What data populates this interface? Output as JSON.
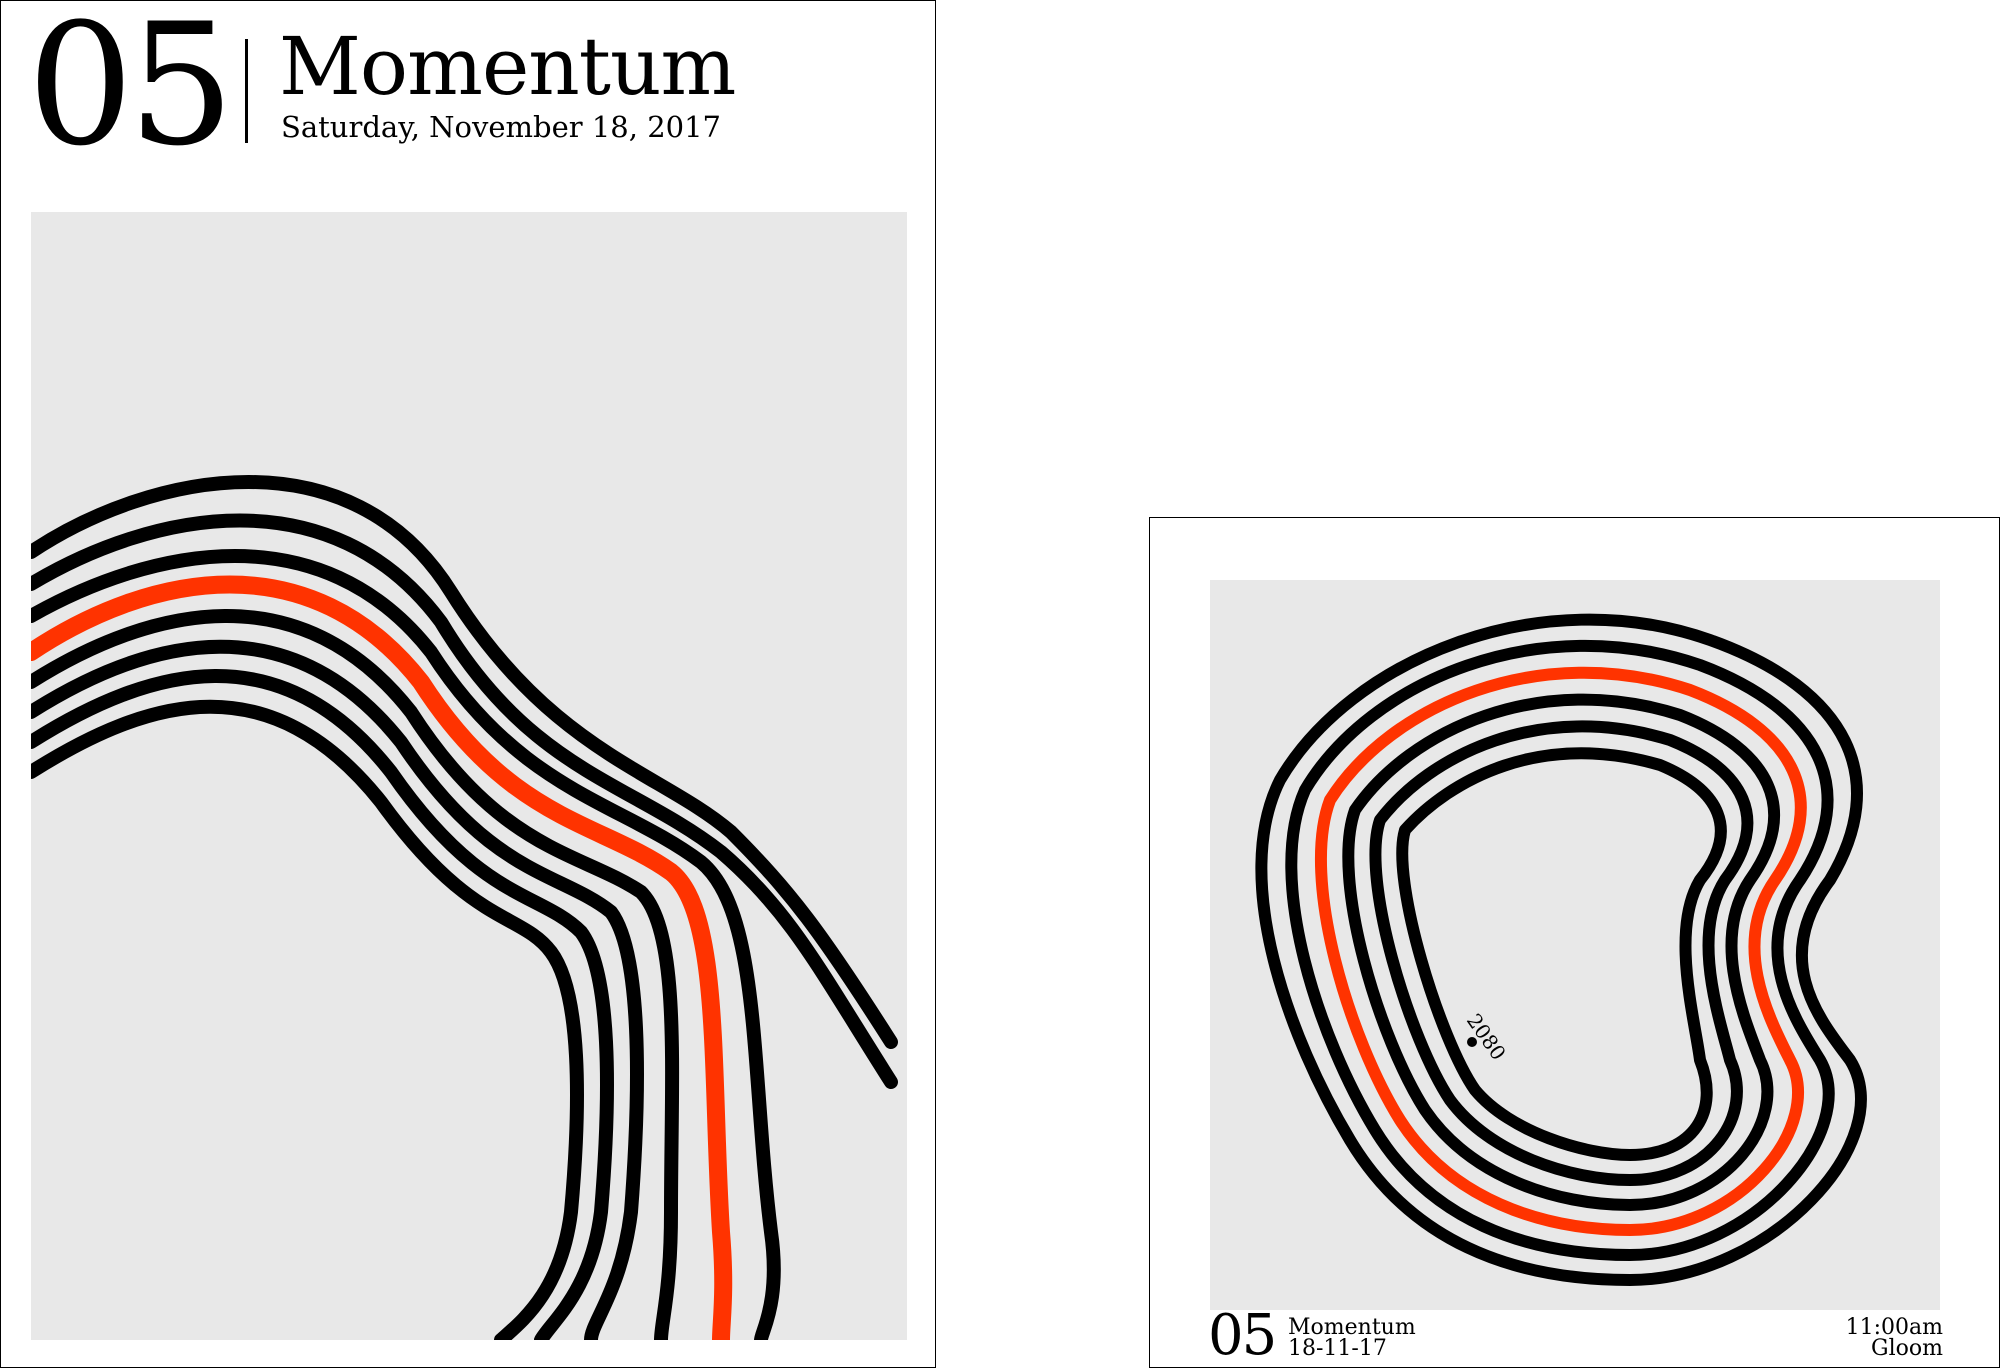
{
  "left_poster": {
    "number": "05",
    "title": "Momentum",
    "date": "Saturday, November 18, 2017"
  },
  "right_poster": {
    "number": "05",
    "title": "Momentum",
    "date": "18-11-17",
    "time": "11:00am",
    "mood": "Gloom",
    "marker_label": "2080"
  },
  "colors": {
    "background": "#e8e8e8",
    "stroke": "#000000",
    "accent": "#ff3300"
  }
}
